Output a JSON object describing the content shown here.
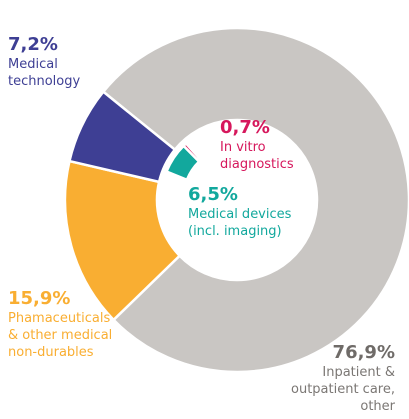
{
  "chart_data": {
    "type": "donut",
    "slices": [
      {
        "name": [
          "Inpatient &",
          "outpatient care,",
          "other"
        ],
        "value": 76.9,
        "value_label": "76,9%",
        "color": "#c9c6c3"
      },
      {
        "name": [
          "Phamaceuticals",
          "& other medical",
          "non-durables"
        ],
        "value": 15.9,
        "value_label": "15,9%",
        "color": "#f9ae32"
      },
      {
        "name": [
          "Medical",
          "technology"
        ],
        "value": 7.2,
        "value_label": "7,2%",
        "color": "#3e3f94"
      }
    ],
    "sub_slices": [
      {
        "name": [
          "Medical devices",
          "(incl. imaging)"
        ],
        "value": 6.5,
        "value_label": "6,5%",
        "color": "#12a89d"
      },
      {
        "name": [
          "In vitro",
          "diagnostics"
        ],
        "value": 0.7,
        "value_label": "0,7%",
        "color": "#d6175c"
      }
    ]
  }
}
